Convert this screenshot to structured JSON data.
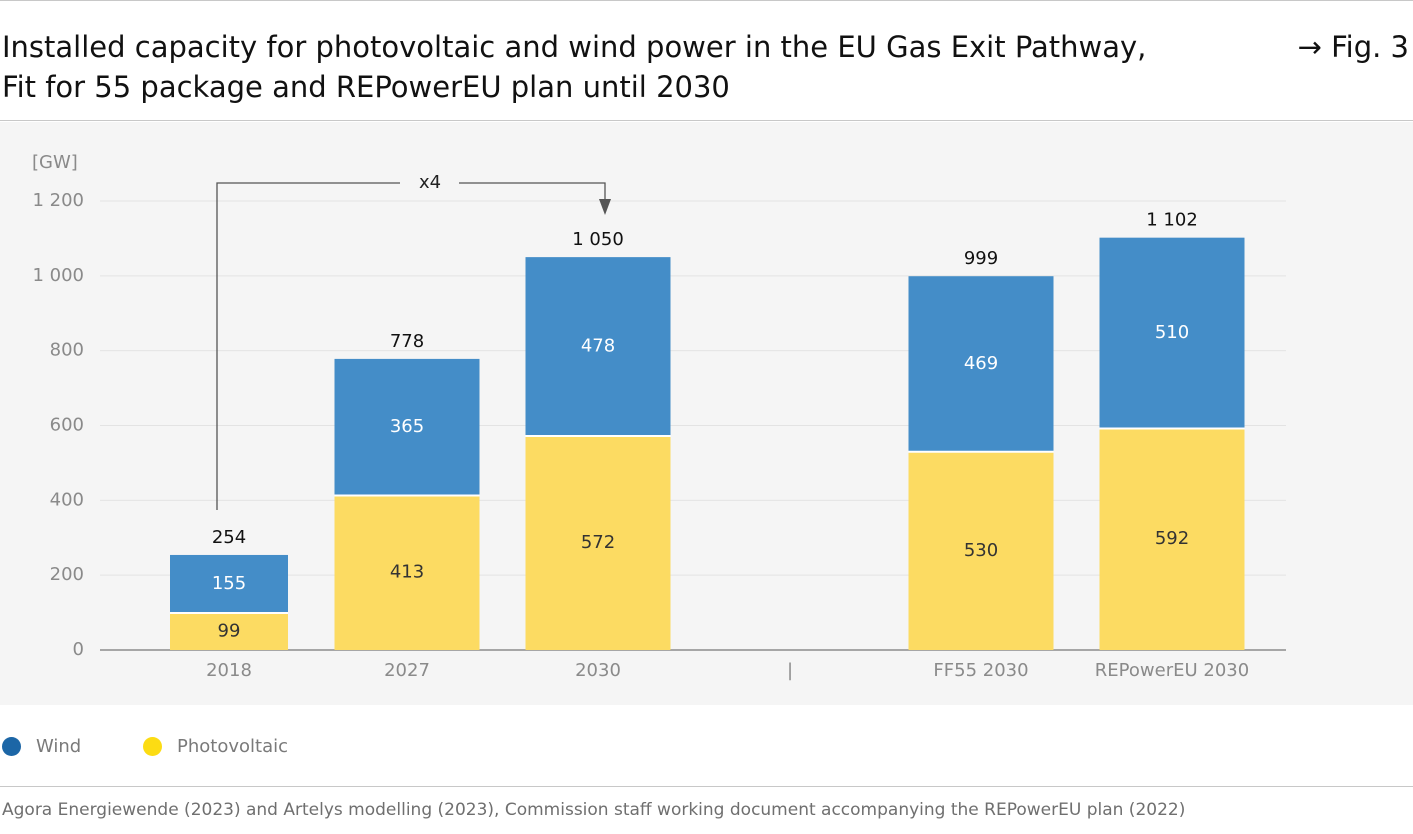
{
  "header": {
    "title_line1": "Installed capacity for photovoltaic and wind power in the EU Gas Exit Pathway,",
    "title_line2": "Fit for 55 package and REPowerEU plan until 2030",
    "figure_ref": "→ Fig. 3"
  },
  "legend": {
    "wind_label": "Wind",
    "pv_label": "Photovoltaic"
  },
  "colors": {
    "wind": "#448dc8",
    "wind_legend": "#1c66a6",
    "photovoltaic": "#fcdb62",
    "photovoltaic_legend": "#fcdc13",
    "panel_background": "#f5f5f5",
    "arrow": "#555555"
  },
  "source": "Agora Energiewende (2023) and Artelys modelling (2023), Commission staff working document accompanying the REPowerEU plan (2022)",
  "chart_data": {
    "type": "bar",
    "stacked": true,
    "unit_label": "[GW]",
    "categories": [
      "2018",
      "2027",
      "2030",
      "FF55 2030",
      "REPowerEU 2030"
    ],
    "separator_label": "|",
    "series": [
      {
        "name": "Photovoltaic",
        "values": [
          99,
          413,
          572,
          530,
          592
        ]
      },
      {
        "name": "Wind",
        "values": [
          155,
          365,
          478,
          469,
          510
        ]
      }
    ],
    "totals": [
      "254",
      "778",
      "1 050",
      "999",
      "1 102"
    ],
    "ylim": [
      0,
      1200
    ],
    "yticks": [
      0,
      200,
      400,
      600,
      800,
      1000,
      1200
    ],
    "ytick_labels": [
      "0",
      "200",
      "400",
      "600",
      "800",
      "1 000",
      "1 200"
    ],
    "grid": true,
    "annotation": {
      "text": "x4",
      "from_category": "2018",
      "to_category": "2030"
    }
  }
}
